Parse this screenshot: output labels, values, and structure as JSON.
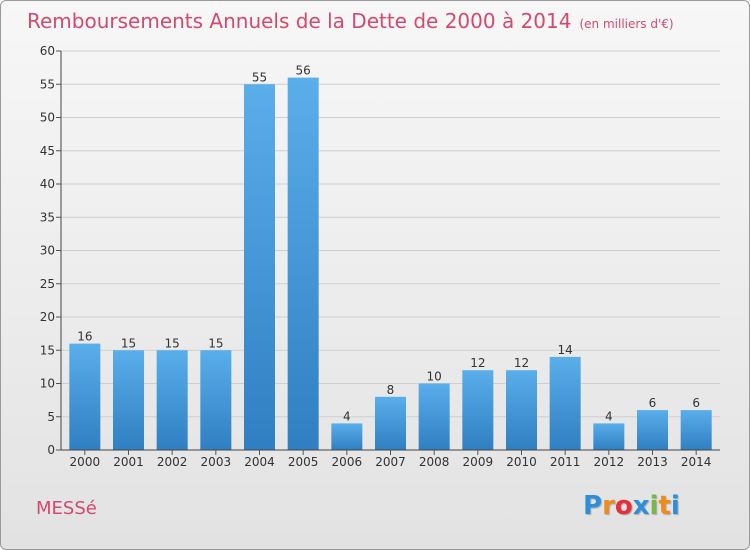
{
  "title": "Remboursements Annuels de la Dette de 2000 à 2014",
  "unit_note": "(en milliers d'€)",
  "commune": "MESSé",
  "logo": {
    "letters": [
      "P",
      "r",
      "o",
      "x",
      "i",
      "t",
      "i"
    ],
    "colors": [
      "#2e8fd8",
      "#f08a1c",
      "#e4303a",
      "#2e8fd8",
      "#7ab648",
      "#f08a1c",
      "#2e8fd8"
    ]
  },
  "colors": {
    "bar_top": "#5aaeea",
    "bar_bottom": "#2f7fc2",
    "title": "#d24a6e"
  },
  "chart_data": {
    "type": "bar",
    "title": "Remboursements Annuels de la Dette de 2000 à 2014",
    "categories": [
      "2000",
      "2001",
      "2002",
      "2003",
      "2004",
      "2005",
      "2006",
      "2007",
      "2008",
      "2009",
      "2010",
      "2011",
      "2012",
      "2013",
      "2014"
    ],
    "values": [
      16,
      15,
      15,
      15,
      55,
      56,
      4,
      8,
      10,
      12,
      12,
      14,
      4,
      6,
      6
    ],
    "ylim": [
      0,
      60
    ],
    "yticks": [
      0,
      5,
      10,
      15,
      20,
      25,
      30,
      35,
      40,
      45,
      50,
      55,
      60
    ],
    "grid": true,
    "data_labels": true
  }
}
